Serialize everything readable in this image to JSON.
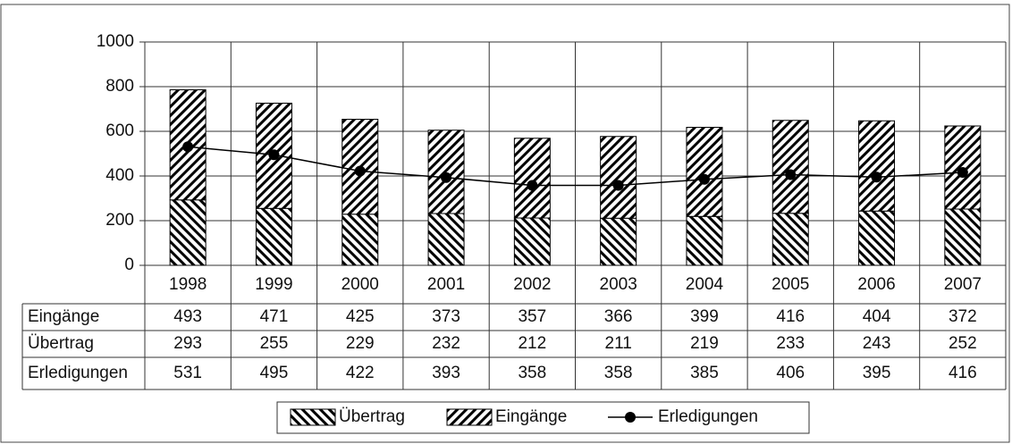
{
  "chart_data": {
    "type": "bar",
    "stacked": true,
    "categories": [
      "1998",
      "1999",
      "2000",
      "2001",
      "2002",
      "2003",
      "2004",
      "2005",
      "2006",
      "2007"
    ],
    "series": [
      {
        "name": "Übertrag",
        "color": "#000000",
        "values": [
          293,
          255,
          229,
          232,
          212,
          211,
          219,
          233,
          243,
          252
        ]
      },
      {
        "name": "Eingänge",
        "color": "#000000",
        "values": [
          493,
          471,
          425,
          373,
          357,
          366,
          399,
          416,
          404,
          372
        ]
      },
      {
        "name": "Erledigungen",
        "color": "#000000",
        "type": "line",
        "values": [
          531,
          495,
          422,
          393,
          358,
          358,
          385,
          406,
          395,
          416
        ]
      }
    ],
    "ylim": [
      0,
      1000
    ],
    "yticks": [
      0,
      200,
      400,
      600,
      800,
      1000
    ],
    "grid": true,
    "legend": "bottom"
  }
}
